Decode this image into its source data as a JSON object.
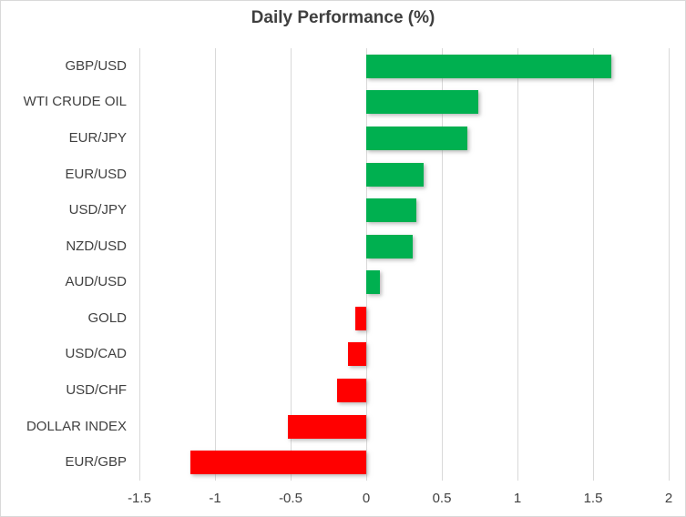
{
  "chart_data": {
    "type": "bar",
    "orientation": "horizontal",
    "title": "Daily Performance (%)",
    "categories": [
      "GBP/USD",
      "WTI CRUDE OIL",
      "EUR/JPY",
      "EUR/USD",
      "USD/JPY",
      "NZD/USD",
      "AUD/USD",
      "GOLD",
      "USD/CAD",
      "USD/CHF",
      "DOLLAR INDEX",
      "EUR/GBP"
    ],
    "values": [
      1.62,
      0.74,
      0.67,
      0.38,
      0.33,
      0.31,
      0.09,
      -0.07,
      -0.12,
      -0.19,
      -0.52,
      -1.16
    ],
    "xlabel": "",
    "ylabel": "",
    "xlim": [
      -1.5,
      2
    ],
    "x_ticks": [
      -1.5,
      -1,
      -0.5,
      0,
      0.5,
      1,
      1.5,
      2
    ],
    "x_tick_labels": [
      "-1.5",
      "-1",
      "-0.5",
      "0",
      "0.5",
      "1",
      "1.5",
      "2"
    ],
    "grid": "vertical",
    "legend": "none",
    "colors": {
      "positive": "#00B050",
      "negative": "#FF0000",
      "gridline": "#D9D9D9",
      "text": "#404040",
      "title": "#3F3F3F",
      "border": "#D9D9D9",
      "background": "#FFFFFF"
    }
  }
}
